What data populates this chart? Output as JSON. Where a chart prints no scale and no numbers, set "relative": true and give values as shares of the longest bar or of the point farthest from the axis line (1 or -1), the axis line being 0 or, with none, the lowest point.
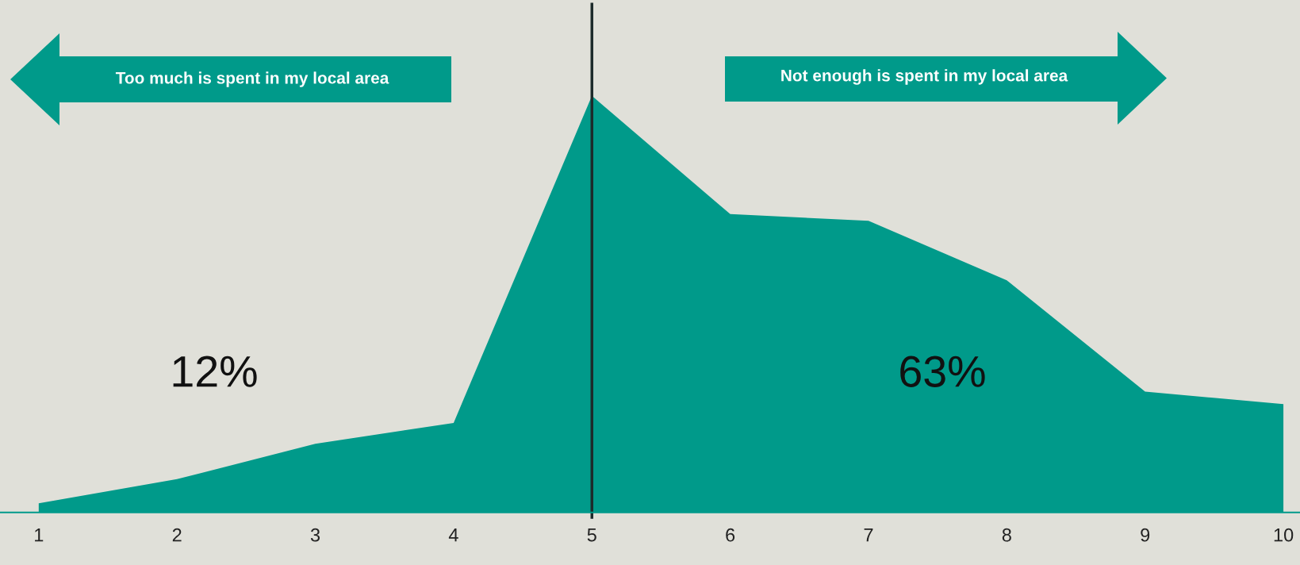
{
  "chart_data": {
    "type": "area",
    "relative": true,
    "categories": [
      "1",
      "2",
      "3",
      "4",
      "5",
      "6",
      "7",
      "8",
      "9",
      "10"
    ],
    "series": [
      {
        "color": "#009a8a",
        "values": [
          0.022,
          0.08,
          0.165,
          0.215,
          1,
          0.716,
          0.7,
          0.557,
          0.29,
          0.26
        ]
      }
    ],
    "ref_lines": [
      {
        "axis": "x",
        "value": "5",
        "color": "#1d2b2b"
      }
    ],
    "annotations": [
      "Too much is spent in my local area",
      "Not enough is spent in my local area",
      "12%",
      "63%"
    ],
    "grid": false,
    "legend": false
  }
}
